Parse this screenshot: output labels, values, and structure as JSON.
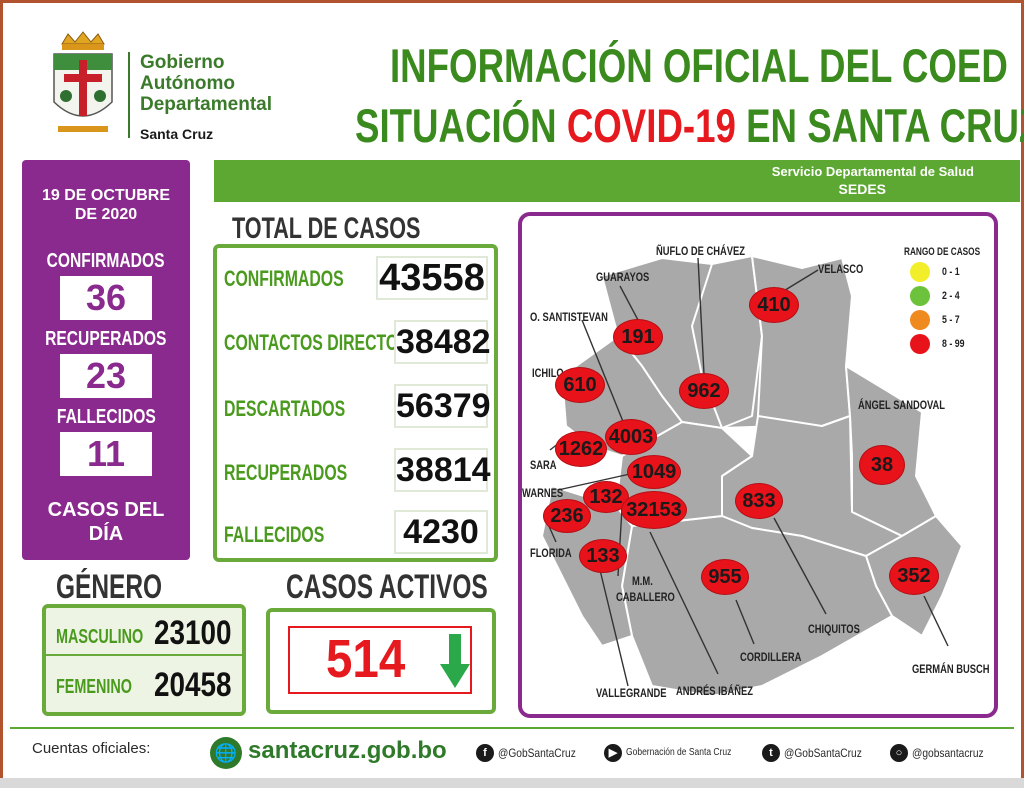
{
  "header": {
    "gov_line1": "Gobierno",
    "gov_line2": "Autónomo",
    "gov_line3": "Departamental",
    "gov_sub": "Santa Cruz",
    "title_line1": "INFORMACIÓN OFICIAL DEL COED",
    "title_line2_pre": "SITUACIÓN ",
    "title_line2_red": "COVID-19",
    "title_line2_post": " EN SANTA CRUZ",
    "service_line1": "Servicio Departamental de Salud",
    "service_line2": "SEDES"
  },
  "daily": {
    "date_line1": "19 DE OCTUBRE",
    "date_line2": "DE 2020",
    "confirmed_label": "CONFIRMADOS",
    "confirmed_value": "36",
    "recovered_label": "RECUPERADOS",
    "recovered_value": "23",
    "deceased_label": "FALLECIDOS",
    "deceased_value": "11",
    "footer_line1": "CASOS DEL",
    "footer_line2": "DÍA"
  },
  "totals": {
    "title": "TOTAL DE CASOS",
    "rows": [
      {
        "label": "CONFIRMADOS",
        "value": "43558"
      },
      {
        "label": "CONTACTOS DIRECTOS",
        "value": "38482"
      },
      {
        "label": "DESCARTADOS",
        "value": "56379"
      },
      {
        "label": "RECUPERADOS",
        "value": "38814"
      },
      {
        "label": "FALLECIDOS",
        "value": "4230"
      }
    ]
  },
  "gender": {
    "title": "GÉNERO",
    "male_label": "MASCULINO",
    "male_value": "23100",
    "female_label": "FEMENINO",
    "female_value": "20458"
  },
  "active": {
    "title": "CASOS ACTIVOS",
    "value": "514",
    "trend": "down-arrow-icon"
  },
  "map": {
    "legend_title": "RANGO DE CASOS",
    "legend": [
      {
        "label": "0 - 1",
        "color": "#f2ee2a"
      },
      {
        "label": "2 - 4",
        "color": "#6cc23a"
      },
      {
        "label": "5 - 7",
        "color": "#ef8a1e"
      },
      {
        "label": "8 - 99",
        "color": "#e8121a"
      }
    ],
    "provinces": [
      {
        "name": "GUARAYOS",
        "cases": "191"
      },
      {
        "name": "ÑUFLO DE CHÁVEZ",
        "cases": "962"
      },
      {
        "name": "VELASCO",
        "cases": "410"
      },
      {
        "name": "O. SANTISTEVAN",
        "cases": "4003"
      },
      {
        "name": "ICHILO",
        "cases": "610"
      },
      {
        "name": "SARA",
        "cases": "1262"
      },
      {
        "name": "WARNES",
        "cases": "1049"
      },
      {
        "name": "FLORIDA",
        "cases": "236"
      },
      {
        "name": "M.M. CABALLERO",
        "cases": "132"
      },
      {
        "name": "ANDRÉS IBÁÑEZ",
        "cases": "32153"
      },
      {
        "name": "VALLEGRANDE",
        "cases": "133"
      },
      {
        "name": "CORDILLERA",
        "cases": "955"
      },
      {
        "name": "CHIQUITOS",
        "cases": "833"
      },
      {
        "name": "ÁNGEL SANDOVAL",
        "cases": "38"
      },
      {
        "name": "GERMÁN BUSCH",
        "cases": "352"
      }
    ],
    "mm_caballero_line1": "M.M.",
    "mm_caballero_line2": "CABALLERO"
  },
  "footer": {
    "label": "Cuentas oficiales:",
    "website": "santacruz.gob.bo",
    "facebook": "@GobSantaCruz",
    "youtube": "Gobernación de Santa Cruz",
    "twitter": "@GobSantaCruz",
    "instagram": "@gobsantacruz"
  }
}
